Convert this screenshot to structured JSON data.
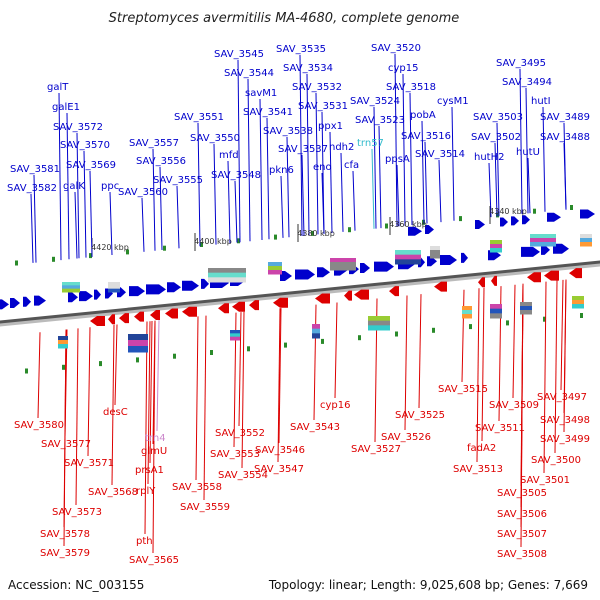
{
  "title": "Streptomyces avermitilis MA-4680, complete genome",
  "footer": {
    "accession": "Accession: NC_003155",
    "topology": "Topology: linear; Length: 9,025,608 bp; Genes: 7,669"
  },
  "colors": {
    "top": "#0000cc",
    "bottom": "#dd0000",
    "trna": "#33bbcc",
    "trna_bottom": "#cc88cc"
  },
  "kbp_ticks": [
    "4420 kbp",
    "4400 kbp",
    "4380 kbp",
    "4360 kbp",
    "4340 kbp"
  ],
  "top_labels": [
    "galT",
    "galE1",
    "SAV_3572",
    "SAV_3570",
    "SAV_3569",
    "SAV_3581",
    "SAV_3582",
    "galK",
    "ppc",
    "SAV_3557",
    "SAV_3556",
    "SAV_3560",
    "SAV_3555",
    "SAV_3551",
    "SAV_3550",
    "mfd",
    "SAV_3548",
    "SAV_3545",
    "SAV_3544",
    "savM1",
    "SAV_3541",
    "SAV_3538",
    "pkn6",
    "SAV_3535",
    "SAV_3534",
    "SAV_3532",
    "SAV_3531",
    "ppx1",
    "SAV_3537",
    "eno",
    "ndh2",
    "cfa",
    "trn57",
    "SAV_3520",
    "cyp15",
    "SAV_3518",
    "SAV_3524",
    "SAV_3523",
    "ppsA",
    "pobA",
    "SAV_3516",
    "cysM1",
    "SAV_3514",
    "SAV_3503",
    "SAV_3502",
    "hutH2",
    "SAV_3495",
    "SAV_3494",
    "hutI",
    "hutU",
    "SAV_3489",
    "SAV_3488"
  ],
  "bottom_labels": [
    "SAV_3580",
    "SAV_3577",
    "SAV_3571",
    "desC",
    "SAV_3568",
    "SAV_3573",
    "SAV_3578",
    "SAV_3579",
    "trn4",
    "glmU",
    "prsA1",
    "rplY",
    "pth",
    "SAV_3565",
    "SAV_3558",
    "SAV_3559",
    "SAV_3552",
    "SAV_3553",
    "SAV_3554",
    "SAV_3543",
    "SAV_3546",
    "SAV_3547",
    "cyp16",
    "SAV_3525",
    "SAV_3526",
    "SAV_3527",
    "SAV_3515",
    "SAV_3509",
    "SAV_3511",
    "fadA2",
    "SAV_3513",
    "SAV_3497",
    "SAV_3498",
    "SAV_3499",
    "SAV_3500",
    "SAV_3501",
    "SAV_3505",
    "SAV_3506",
    "SAV_3507",
    "SAV_3508"
  ]
}
